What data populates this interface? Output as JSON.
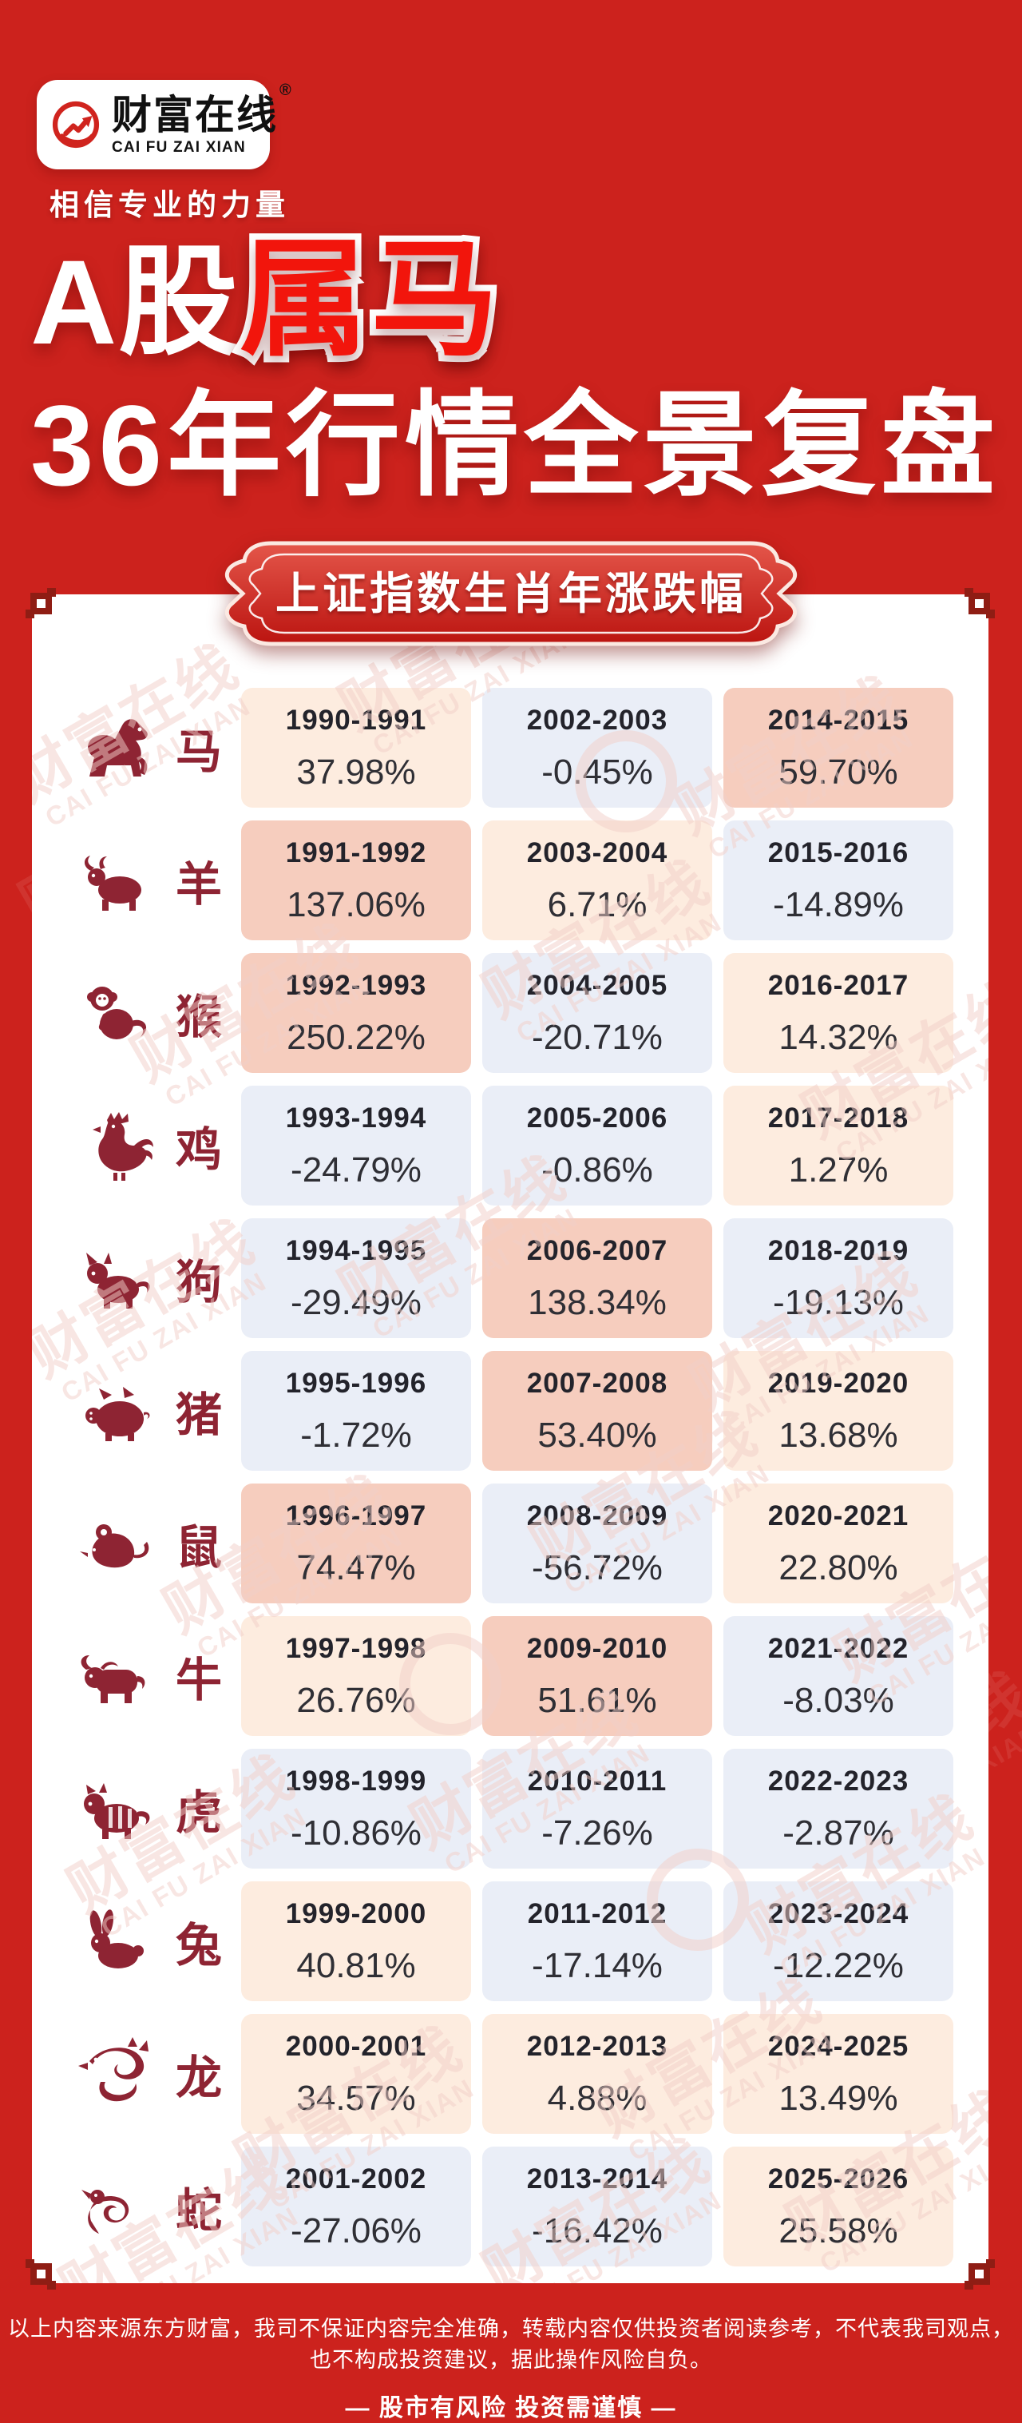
{
  "logo": {
    "name_cn": "财富在线",
    "registered": "®",
    "name_en": "CAI FU ZAI XIAN",
    "tagline": "相信专业的力量"
  },
  "title": {
    "part_white": "A股",
    "part_red": "属马",
    "line2": "36年行情全景复盘"
  },
  "banner": {
    "label": "上证指数生肖年涨跌幅"
  },
  "table": {
    "rows": [
      {
        "animal": "马",
        "icon": "horse",
        "cells": [
          {
            "years": "1990-1991",
            "change": "37.98%",
            "tone": "up"
          },
          {
            "years": "2002-2003",
            "change": "-0.45%",
            "tone": "down"
          },
          {
            "years": "2014-2015",
            "change": "59.70%",
            "tone": "strong"
          }
        ]
      },
      {
        "animal": "羊",
        "icon": "goat",
        "cells": [
          {
            "years": "1991-1992",
            "change": "137.06%",
            "tone": "strong"
          },
          {
            "years": "2003-2004",
            "change": "6.71%",
            "tone": "up"
          },
          {
            "years": "2015-2016",
            "change": "-14.89%",
            "tone": "down"
          }
        ]
      },
      {
        "animal": "猴",
        "icon": "monkey",
        "cells": [
          {
            "years": "1992-1993",
            "change": "250.22%",
            "tone": "strong"
          },
          {
            "years": "2004-2005",
            "change": "-20.71%",
            "tone": "down"
          },
          {
            "years": "2016-2017",
            "change": "14.32%",
            "tone": "up"
          }
        ]
      },
      {
        "animal": "鸡",
        "icon": "rooster",
        "cells": [
          {
            "years": "1993-1994",
            "change": "-24.79%",
            "tone": "down"
          },
          {
            "years": "2005-2006",
            "change": "-0.86%",
            "tone": "down"
          },
          {
            "years": "2017-2018",
            "change": "1.27%",
            "tone": "up"
          }
        ]
      },
      {
        "animal": "狗",
        "icon": "dog",
        "cells": [
          {
            "years": "1994-1995",
            "change": "-29.49%",
            "tone": "down"
          },
          {
            "years": "2006-2007",
            "change": "138.34%",
            "tone": "strong"
          },
          {
            "years": "2018-2019",
            "change": "-19.13%",
            "tone": "down"
          }
        ]
      },
      {
        "animal": "猪",
        "icon": "pig",
        "cells": [
          {
            "years": "1995-1996",
            "change": "-1.72%",
            "tone": "down"
          },
          {
            "years": "2007-2008",
            "change": "53.40%",
            "tone": "strong"
          },
          {
            "years": "2019-2020",
            "change": "13.68%",
            "tone": "up"
          }
        ]
      },
      {
        "animal": "鼠",
        "icon": "rat",
        "cells": [
          {
            "years": "1996-1997",
            "change": "74.47%",
            "tone": "strong"
          },
          {
            "years": "2008-2009",
            "change": "-56.72%",
            "tone": "down"
          },
          {
            "years": "2020-2021",
            "change": "22.80%",
            "tone": "up"
          }
        ]
      },
      {
        "animal": "牛",
        "icon": "ox",
        "cells": [
          {
            "years": "1997-1998",
            "change": "26.76%",
            "tone": "up"
          },
          {
            "years": "2009-2010",
            "change": "51.61%",
            "tone": "strong"
          },
          {
            "years": "2021-2022",
            "change": "-8.03%",
            "tone": "down"
          }
        ]
      },
      {
        "animal": "虎",
        "icon": "tiger",
        "cells": [
          {
            "years": "1998-1999",
            "change": "-10.86%",
            "tone": "down"
          },
          {
            "years": "2010-2011",
            "change": "-7.26%",
            "tone": "down"
          },
          {
            "years": "2022-2023",
            "change": "-2.87%",
            "tone": "down"
          }
        ]
      },
      {
        "animal": "兔",
        "icon": "rabbit",
        "cells": [
          {
            "years": "1999-2000",
            "change": "40.81%",
            "tone": "up"
          },
          {
            "years": "2011-2012",
            "change": "-17.14%",
            "tone": "down"
          },
          {
            "years": "2023-2024",
            "change": "-12.22%",
            "tone": "down"
          }
        ]
      },
      {
        "animal": "龙",
        "icon": "dragon",
        "cells": [
          {
            "years": "2000-2001",
            "change": "34.57%",
            "tone": "up"
          },
          {
            "years": "2012-2013",
            "change": "4.88%",
            "tone": "up"
          },
          {
            "years": "2024-2025",
            "change": "13.49%",
            "tone": "up"
          }
        ]
      },
      {
        "animal": "蛇",
        "icon": "snake",
        "cells": [
          {
            "years": "2001-2002",
            "change": "-27.06%",
            "tone": "down"
          },
          {
            "years": "2013-2014",
            "change": "-16.42%",
            "tone": "down"
          },
          {
            "years": "2025-2026",
            "change": "25.58%",
            "tone": "up"
          }
        ]
      }
    ]
  },
  "footer": {
    "disclaimer": "以上内容来源东方财富，我司不保证内容完全准确，转载内容仅供投资者阅读参考，不代表我司观点，也不构成投资建议，据此操作风险自负。",
    "risk": "— 股市有风险 投资需谨慎 —"
  },
  "colors": {
    "bg_red": "#cc221d",
    "accent_red": "#d0241e",
    "bright_red": "#f2150c",
    "maroon": "#8e2433",
    "ornament": "#8f1d14",
    "tone_strong": "#f6cdbe",
    "tone_up": "#fdecdf",
    "tone_down": "#eaeef7",
    "year_text": "#23232b",
    "pct_text": "#2f2f35",
    "card_bg": "#ffffff",
    "watermark_pink": "#f2cfc9"
  }
}
